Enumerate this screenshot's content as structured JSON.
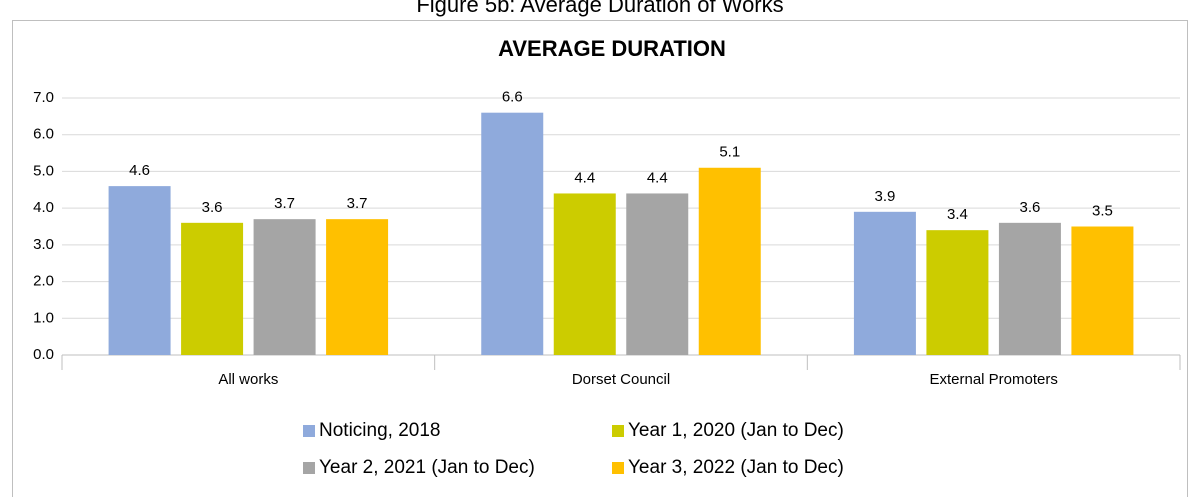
{
  "chart_data": {
    "type": "bar",
    "caption": "Figure 5b: Average Duration of Works",
    "title": "AVERAGE DURATION",
    "categories": [
      "All works",
      "Dorset Council",
      "External Promoters"
    ],
    "series": [
      {
        "name": "Noticing, 2018",
        "color": "#8faadc",
        "values": [
          4.6,
          6.6,
          3.9
        ]
      },
      {
        "name": "Year 1, 2020 (Jan to Dec)",
        "color": "#cccc00",
        "values": [
          3.6,
          4.4,
          3.4
        ]
      },
      {
        "name": "Year 2, 2021 (Jan to Dec)",
        "color": "#a5a5a5",
        "values": [
          3.7,
          4.4,
          3.6
        ]
      },
      {
        "name": "Year 3, 2022 (Jan to Dec)",
        "color": "#ffc000",
        "values": [
          3.7,
          5.1,
          3.5
        ]
      }
    ],
    "ylim": [
      0,
      7
    ],
    "yticks": [
      {
        "value": 0,
        "label": "0.0"
      },
      {
        "value": 1,
        "label": "1.0"
      },
      {
        "value": 2,
        "label": "2.0"
      },
      {
        "value": 3,
        "label": "3.0"
      },
      {
        "value": 4,
        "label": "4.0"
      },
      {
        "value": 5,
        "label": "5.0"
      },
      {
        "value": 6,
        "label": "6.0"
      },
      {
        "value": 7,
        "label": "7.0"
      }
    ],
    "grid": true,
    "legend": "bottom"
  }
}
